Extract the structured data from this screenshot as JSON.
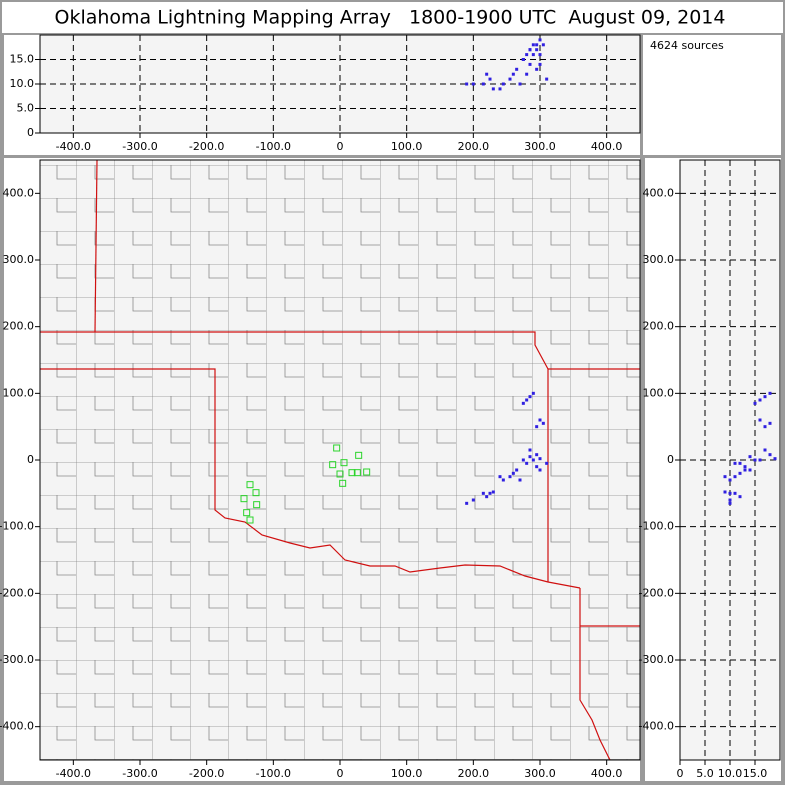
{
  "title": "Oklahoma Lightning Mapping Array   1800-1900 UTC  August 09, 2014",
  "source_count": "4624 sources",
  "source_color": "#3020e0",
  "station_color": "#2bd42b",
  "background_color": "#f4f4f4",
  "plan_view": {
    "xlim": [
      -450,
      450
    ],
    "ylim": [
      -450,
      450
    ],
    "xticks": [
      {
        "value": -400,
        "label": "-400.0"
      },
      {
        "value": -300,
        "label": "-300.0"
      },
      {
        "value": -200,
        "label": "-200.0"
      },
      {
        "value": -100,
        "label": "-100.0"
      },
      0,
      {
        "value": 100,
        "label": "100.0"
      },
      {
        "value": 200,
        "label": "200.0"
      },
      {
        "value": 300,
        "label": "300.0"
      },
      {
        "value": 400,
        "label": "400.0"
      }
    ],
    "yticks": [
      {
        "value": -400,
        "label": "-400.0"
      },
      {
        "value": -300,
        "label": "-300.0"
      },
      {
        "value": -200,
        "label": "-200.0"
      },
      {
        "value": -100,
        "label": "-100.0"
      },
      0,
      {
        "value": 100,
        "label": "100.0"
      },
      {
        "value": 200,
        "label": "200.0"
      },
      {
        "value": 300,
        "label": "300.0"
      },
      {
        "value": 400,
        "label": "400.0"
      }
    ]
  },
  "top_panel": {
    "xlim": [
      -450,
      450
    ],
    "ylim": [
      0,
      20
    ],
    "xticks": [
      {
        "value": -400,
        "label": "-400.0"
      },
      {
        "value": -300,
        "label": "-300.0"
      },
      {
        "value": -200,
        "label": "-200.0"
      },
      {
        "value": -100,
        "label": "-100.0"
      },
      0,
      {
        "value": 100,
        "label": "100.0"
      },
      {
        "value": 200,
        "label": "200.0"
      },
      {
        "value": 300,
        "label": "300.0"
      },
      {
        "value": 400,
        "label": "400.0"
      }
    ],
    "yticks": [
      0,
      {
        "value": 5,
        "label": "5.0"
      },
      {
        "value": 10,
        "label": "10.0"
      },
      {
        "value": 15,
        "label": "15.0"
      }
    ]
  },
  "side_panel": {
    "xlim": [
      0,
      20
    ],
    "ylim": [
      -450,
      450
    ],
    "xticks": [
      0,
      {
        "value": 5,
        "label": "5.0"
      },
      {
        "value": 10,
        "label": "10.0"
      },
      {
        "value": 15,
        "label": "15.0"
      }
    ],
    "yticks": [
      {
        "value": -400,
        "label": "-400.0"
      },
      {
        "value": -300,
        "label": "-300.0"
      },
      {
        "value": -200,
        "label": "-200.0"
      },
      {
        "value": -100,
        "label": "-100.0"
      },
      0,
      {
        "value": 100,
        "label": "100.0"
      },
      {
        "value": 200,
        "label": "200.0"
      },
      {
        "value": 300,
        "label": "300.0"
      },
      {
        "value": 400,
        "label": "400.0"
      }
    ]
  },
  "sources": {
    "x": [
      285,
      280,
      290,
      275,
      300,
      295,
      305,
      285,
      290,
      295,
      300,
      280,
      275,
      260,
      255,
      265,
      245,
      225,
      220,
      215,
      230,
      190,
      285,
      295,
      310,
      300,
      240,
      270,
      200
    ],
    "y": [
      95,
      90,
      100,
      85,
      60,
      50,
      55,
      5,
      0,
      8,
      2,
      -5,
      0,
      -20,
      -25,
      -15,
      -30,
      -50,
      -55,
      -50,
      -48,
      -65,
      15,
      -10,
      -5,
      -15,
      -25,
      -30,
      -60
    ],
    "z": [
      17,
      16,
      18,
      15,
      16,
      17,
      18,
      14,
      16,
      18,
      19,
      12,
      15,
      12,
      11,
      13,
      10,
      11,
      12,
      10,
      9,
      10,
      17,
      13,
      11,
      14,
      9,
      10,
      10
    ]
  },
  "stations": {
    "x": [
      -5,
      -11,
      6,
      28,
      26,
      4,
      40,
      18,
      0,
      -135,
      -144,
      -126,
      -140,
      -125,
      -135
    ],
    "y": [
      18,
      -7,
      -4,
      7,
      -19,
      -35,
      -18,
      -19,
      -21,
      -37,
      -58,
      -49,
      -79,
      -67,
      -90
    ]
  }
}
